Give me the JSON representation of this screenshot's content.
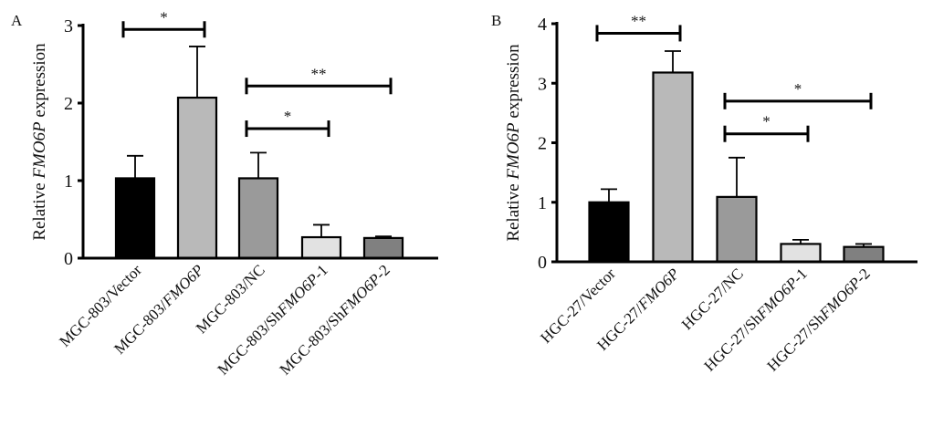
{
  "chart_data": [
    {
      "type": "bar",
      "panel": "A",
      "ylabel": {
        "prefix": "Relative ",
        "italic": "FMO6P",
        "suffix": " expression"
      },
      "ylim": [
        0,
        3
      ],
      "yticks": [
        "0",
        "1",
        "2",
        "3"
      ],
      "categories": [
        {
          "prefix": "MGC-803/Vector",
          "italic": "",
          "suffix": ""
        },
        {
          "prefix": "MGC-803/",
          "italic": "FMO6P",
          "suffix": ""
        },
        {
          "prefix": "MGC-803/NC",
          "italic": "",
          "suffix": ""
        },
        {
          "prefix": "MGC-803/Sh",
          "italic": "FMO6P",
          "suffix": "-1"
        },
        {
          "prefix": "MGC-803/Sh",
          "italic": "FMO6P",
          "suffix": "-2"
        }
      ],
      "values": [
        1.03,
        2.07,
        1.03,
        0.27,
        0.26
      ],
      "errors": [
        0.29,
        0.66,
        0.33,
        0.16,
        0.02
      ],
      "colors": [
        "#000000",
        "#b9b9b9",
        "#9a9a9a",
        "#e2e2e2",
        "#808080"
      ],
      "significance": [
        {
          "from": 0,
          "to": 1,
          "level": 2.95,
          "label": "*"
        },
        {
          "from": 2,
          "to": 4,
          "level": 2.22,
          "label": "**"
        },
        {
          "from": 2,
          "to": 3,
          "level": 1.67,
          "label": "*"
        }
      ]
    },
    {
      "type": "bar",
      "panel": "B",
      "ylabel": {
        "prefix": "Relative ",
        "italic": "FMO6P",
        "suffix": " expression"
      },
      "ylim": [
        0,
        4
      ],
      "yticks": [
        "0",
        "1",
        "2",
        "3",
        "4"
      ],
      "categories": [
        {
          "prefix": "HGC-27/Vector",
          "italic": "",
          "suffix": ""
        },
        {
          "prefix": "HGC-27/",
          "italic": "FMO6P",
          "suffix": ""
        },
        {
          "prefix": "HGC-27/NC",
          "italic": "",
          "suffix": ""
        },
        {
          "prefix": "HGC-27/Sh",
          "italic": "FMO6P",
          "suffix": "-1"
        },
        {
          "prefix": "HGC-27/Sh",
          "italic": "FMO6P",
          "suffix": "-2"
        }
      ],
      "values": [
        1.0,
        3.18,
        1.09,
        0.3,
        0.25
      ],
      "errors": [
        0.22,
        0.36,
        0.66,
        0.07,
        0.05
      ],
      "colors": [
        "#000000",
        "#b9b9b9",
        "#9a9a9a",
        "#e2e2e2",
        "#808080"
      ],
      "significance": [
        {
          "from": 0,
          "to": 1,
          "level": 3.84,
          "label": "**"
        },
        {
          "from": 2,
          "to": 4,
          "level": 2.7,
          "label": "*"
        },
        {
          "from": 2,
          "to": 3,
          "level": 2.15,
          "label": "*"
        }
      ]
    }
  ]
}
